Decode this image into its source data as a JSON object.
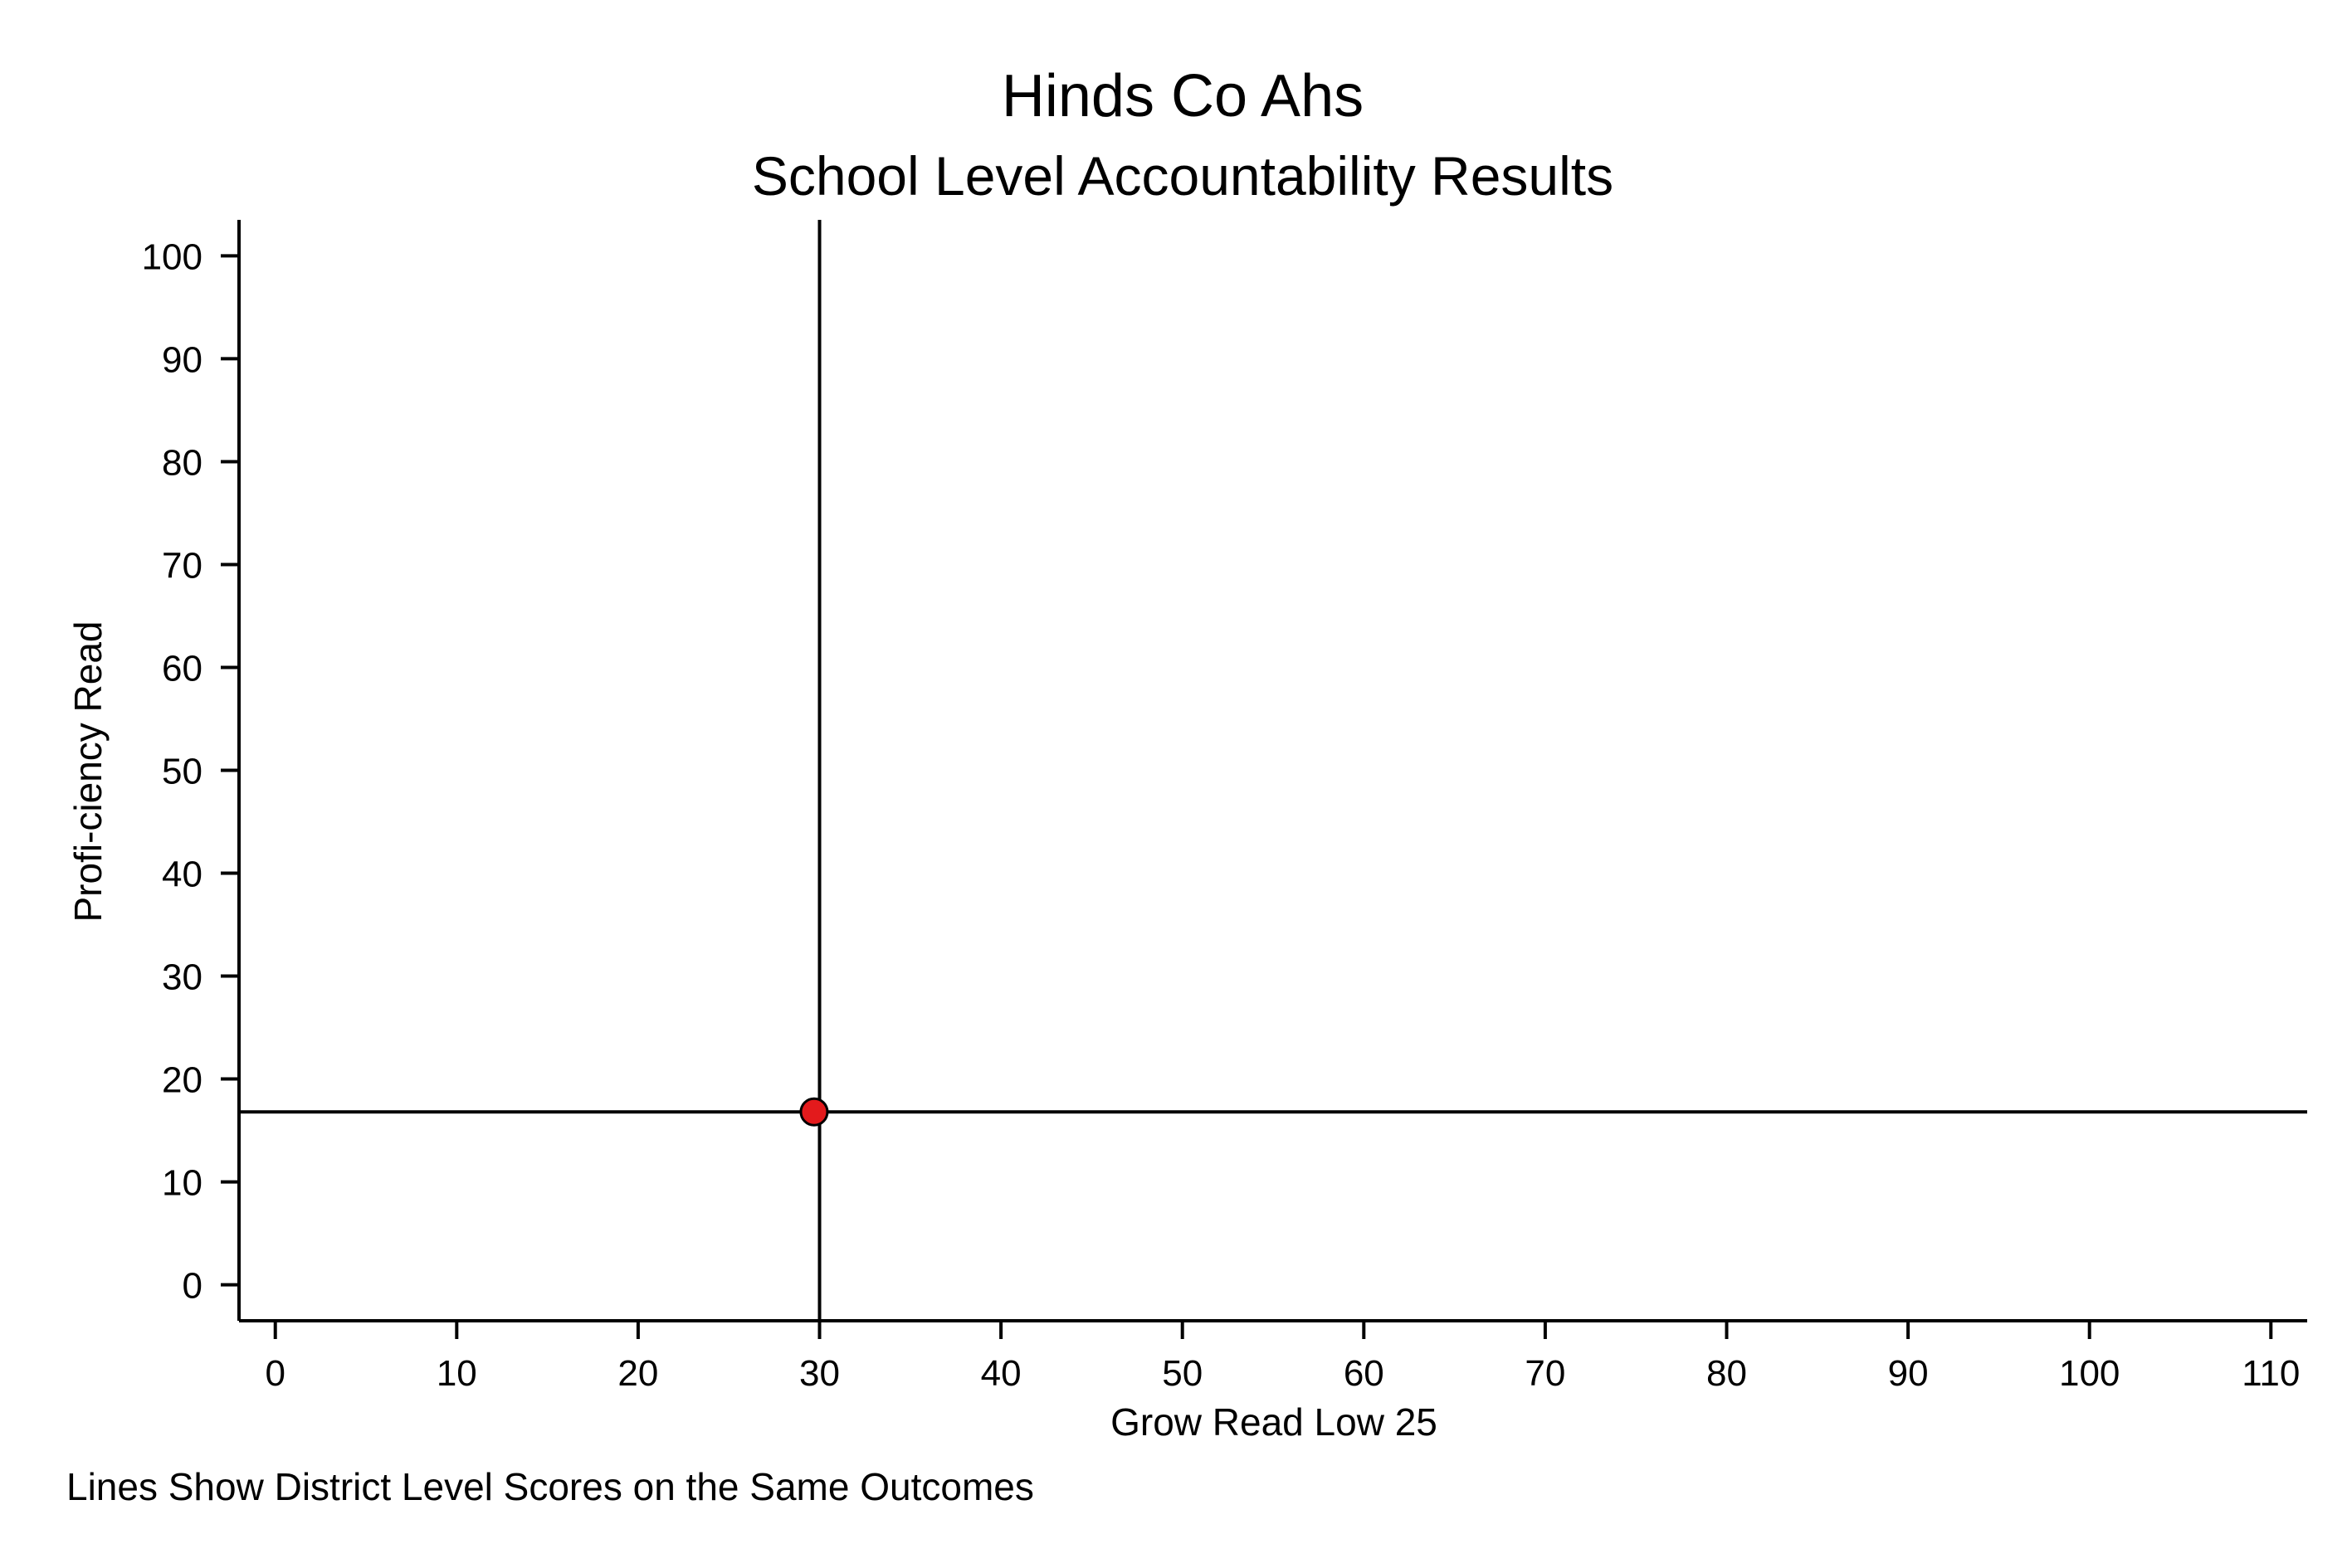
{
  "chart_data": {
    "type": "scatter",
    "title": "Hinds Co Ahs",
    "subtitle": "School Level Accountability Results",
    "xlabel": "Grow Read Low 25",
    "ylabel": "Profi-ciency Read",
    "note": "Lines Show District Level Scores on the Same Outcomes",
    "xlim": [
      -2,
      112
    ],
    "ylim": [
      -3.5,
      103.5
    ],
    "xticks": [
      0,
      10,
      20,
      30,
      40,
      50,
      60,
      70,
      80,
      90,
      100,
      110
    ],
    "yticks": [
      0,
      10,
      20,
      30,
      40,
      50,
      60,
      70,
      80,
      90,
      100
    ],
    "points": [
      {
        "x": 29.7,
        "y": 16.8
      }
    ],
    "reference_lines": {
      "vertical_x": 30,
      "horizontal_y": 16.8
    },
    "grid": false,
    "colors": {
      "point_fill": "#e31a1c",
      "point_stroke": "#000000",
      "lines": "#000000"
    }
  }
}
